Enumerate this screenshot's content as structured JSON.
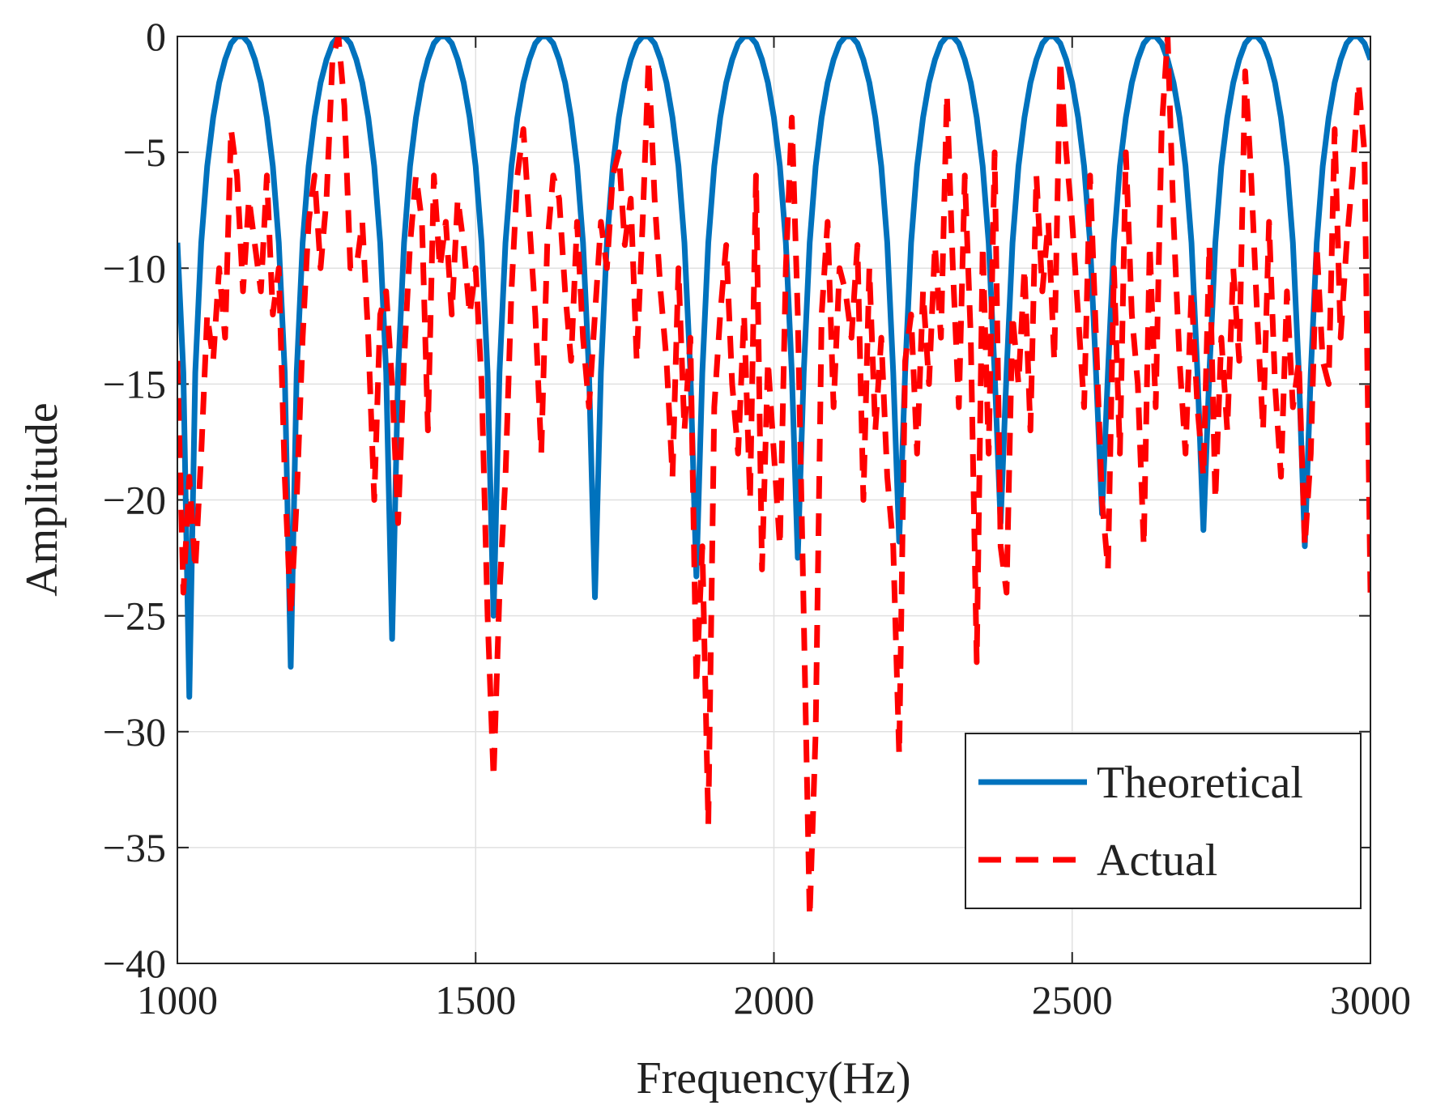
{
  "chart_data": {
    "type": "line",
    "x_label": "Frequency(Hz)",
    "y_label": "Amplitude",
    "x": [
      1000,
      1010,
      1020,
      1030,
      1040,
      1050,
      1060,
      1070,
      1080,
      1090,
      1100,
      1110,
      1120,
      1130,
      1140,
      1150,
      1160,
      1170,
      1180,
      1190,
      1200,
      1210,
      1220,
      1230,
      1240,
      1250,
      1260,
      1270,
      1280,
      1290,
      1300,
      1310,
      1320,
      1330,
      1340,
      1350,
      1360,
      1370,
      1380,
      1390,
      1400,
      1410,
      1420,
      1430,
      1440,
      1450,
      1460,
      1470,
      1480,
      1490,
      1500,
      1510,
      1520,
      1530,
      1540,
      1550,
      1560,
      1570,
      1580,
      1590,
      1600,
      1610,
      1620,
      1630,
      1640,
      1650,
      1660,
      1670,
      1680,
      1690,
      1700,
      1710,
      1720,
      1730,
      1740,
      1750,
      1760,
      1770,
      1780,
      1790,
      1800,
      1810,
      1820,
      1830,
      1840,
      1850,
      1860,
      1870,
      1880,
      1890,
      1900,
      1910,
      1920,
      1930,
      1940,
      1950,
      1960,
      1970,
      1980,
      1990,
      2000,
      2010,
      2020,
      2030,
      2040,
      2050,
      2060,
      2070,
      2080,
      2090,
      2100,
      2110,
      2120,
      2130,
      2140,
      2150,
      2160,
      2170,
      2180,
      2190,
      2200,
      2210,
      2220,
      2230,
      2240,
      2250,
      2260,
      2270,
      2280,
      2290,
      2300,
      2310,
      2320,
      2330,
      2340,
      2350,
      2360,
      2370,
      2380,
      2390,
      2400,
      2410,
      2420,
      2430,
      2440,
      2450,
      2460,
      2470,
      2480,
      2490,
      2500,
      2510,
      2520,
      2530,
      2540,
      2550,
      2560,
      2570,
      2580,
      2590,
      2600,
      2610,
      2620,
      2630,
      2640,
      2650,
      2660,
      2670,
      2680,
      2690,
      2700,
      2710,
      2720,
      2730,
      2740,
      2750,
      2760,
      2770,
      2780,
      2790,
      2800,
      2810,
      2820,
      2830,
      2840,
      2850,
      2860,
      2870,
      2880,
      2890,
      2900,
      2910,
      2920,
      2930,
      2940,
      2950,
      2960,
      2970,
      2980,
      2990,
      3000
    ],
    "series": [
      {
        "name": "Theoretical",
        "color": "#0072bd",
        "dashed": false,
        "values": [
          -8.9,
          -14.5,
          -28.5,
          -14.5,
          -8.9,
          -5.6,
          -3.5,
          -2,
          -1,
          -0.3,
          0,
          0,
          -0.3,
          -1,
          -2,
          -3.5,
          -5.6,
          -8.9,
          -14.5,
          -27.2,
          -14.5,
          -8.9,
          -5.6,
          -3.5,
          -2,
          -1,
          -0.3,
          0,
          0,
          -0.3,
          -1,
          -2,
          -3.5,
          -5.6,
          -8.9,
          -14.5,
          -26,
          -14.5,
          -8.9,
          -5.6,
          -3.5,
          -2,
          -1,
          -0.3,
          0,
          0,
          -0.3,
          -1,
          -2,
          -3.5,
          -5.6,
          -8.9,
          -14.5,
          -25,
          -14.5,
          -8.9,
          -5.6,
          -3.5,
          -2,
          -1,
          -0.3,
          0,
          0,
          -0.3,
          -1,
          -2,
          -3.5,
          -5.6,
          -8.9,
          -14.5,
          -24.2,
          -14.5,
          -8.9,
          -5.6,
          -3.5,
          -2,
          -1,
          -0.3,
          0,
          0,
          -0.3,
          -1,
          -2,
          -3.5,
          -5.6,
          -8.9,
          -14.5,
          -23.3,
          -14.5,
          -8.9,
          -5.6,
          -3.5,
          -2,
          -1,
          -0.3,
          0,
          0,
          -0.3,
          -1,
          -2,
          -3.5,
          -5.6,
          -8.9,
          -14.5,
          -22.5,
          -14.5,
          -8.9,
          -5.6,
          -3.5,
          -2,
          -1,
          -0.3,
          0,
          0,
          -0.3,
          -1,
          -2,
          -3.5,
          -5.6,
          -8.9,
          -14.5,
          -21.8,
          -14.5,
          -8.9,
          -5.6,
          -3.5,
          -2,
          -1,
          -0.3,
          0,
          0,
          -0.3,
          -1,
          -2,
          -3.5,
          -5.6,
          -8.9,
          -14.5,
          -21,
          -14.5,
          -8.9,
          -5.6,
          -3.5,
          -2,
          -1,
          -0.3,
          0,
          0,
          -0.3,
          -1,
          -2,
          -3.5,
          -5.6,
          -8.9,
          -14.5,
          -20.6,
          -14.5,
          -8.9,
          -5.6,
          -3.5,
          -2,
          -1,
          -0.3,
          0,
          0,
          -0.3,
          -1,
          -2,
          -3.5,
          -5.6,
          -8.9,
          -14.5,
          -21.3,
          -14.5,
          -8.9,
          -5.6,
          -3.5,
          -2,
          -1,
          -0.3,
          0,
          0,
          -0.3,
          -1,
          -2,
          -3.5,
          -5.6,
          -8.9,
          -14.5,
          -22,
          -14.5,
          -8.9,
          -5.6,
          -3.5,
          -2,
          -1,
          -0.3,
          0,
          0,
          -0.3,
          -1
        ]
      },
      {
        "name": "Actual",
        "color": "#ff0000",
        "dashed": true,
        "values": [
          -14,
          -24,
          -19,
          -23,
          -18,
          -12,
          -14,
          -10,
          -13,
          -4,
          -6,
          -11,
          -7,
          -9,
          -11,
          -6,
          -12,
          -10,
          -19,
          -25,
          -20,
          -13,
          -8,
          -6,
          -10,
          -7,
          -1,
          0,
          -3,
          -10,
          -10,
          -8,
          -13,
          -20,
          -12,
          -11,
          -15,
          -21,
          -14,
          -9,
          -6,
          -8,
          -17,
          -6,
          -10,
          -8,
          -12,
          -7,
          -9,
          -12,
          -10,
          -15,
          -25,
          -32,
          -24,
          -19,
          -11,
          -6,
          -4,
          -8,
          -12,
          -18,
          -9,
          -6,
          -7,
          -11,
          -14,
          -8,
          -13,
          -16,
          -12,
          -8,
          -10,
          -6,
          -5,
          -9,
          -7,
          -14,
          -8,
          -1,
          -7,
          -11,
          -14,
          -19,
          -10,
          -17,
          -13,
          -28,
          -22,
          -34,
          -16,
          -12,
          -9,
          -15,
          -18,
          -12,
          -20,
          -6,
          -23,
          -14,
          -18,
          -22,
          -10,
          -3.5,
          -12,
          -25,
          -38,
          -30,
          -12,
          -8,
          -16,
          -10,
          -11,
          -13,
          -9,
          -20,
          -10,
          -17,
          -13,
          -19,
          -22,
          -31,
          -14,
          -12,
          -18,
          -11,
          -15,
          -9,
          -13,
          -2.5,
          -10,
          -16,
          -6,
          -13,
          -27,
          -9,
          -18,
          -5,
          -22,
          -24,
          -12,
          -15,
          -10,
          -17,
          -6,
          -11,
          -8,
          -14,
          -1,
          -5,
          -8,
          -12,
          -16,
          -6,
          -13,
          -20,
          -23,
          -10,
          -18,
          -5,
          -12,
          -15,
          -22,
          -9,
          -16,
          -4,
          0,
          -8,
          -14,
          -18,
          -11,
          -16,
          -19,
          -9,
          -20,
          -13,
          -17,
          -10,
          -14,
          -1.5,
          -6,
          -12,
          -17,
          -8,
          -15,
          -19,
          -11,
          -16,
          -14,
          -22,
          -18,
          -9,
          -14,
          -15,
          -4,
          -13,
          -9,
          -6,
          -2,
          -5,
          -24
        ]
      }
    ],
    "xlim": [
      1000,
      3000
    ],
    "xticks": [
      1000,
      1500,
      2000,
      2500,
      3000
    ],
    "ylim": [
      -40,
      0
    ],
    "yticks": [
      {
        "value": -40,
        "label": "−40"
      },
      {
        "value": -35,
        "label": "−35"
      },
      {
        "value": -30,
        "label": "−30"
      },
      {
        "value": -25,
        "label": "−25"
      },
      {
        "value": -20,
        "label": "−20"
      },
      {
        "value": -15,
        "label": "−15"
      },
      {
        "value": -10,
        "label": "−10"
      },
      {
        "value": -5,
        "label": "−5"
      },
      0
    ],
    "grid": true,
    "legend": "lower right"
  }
}
